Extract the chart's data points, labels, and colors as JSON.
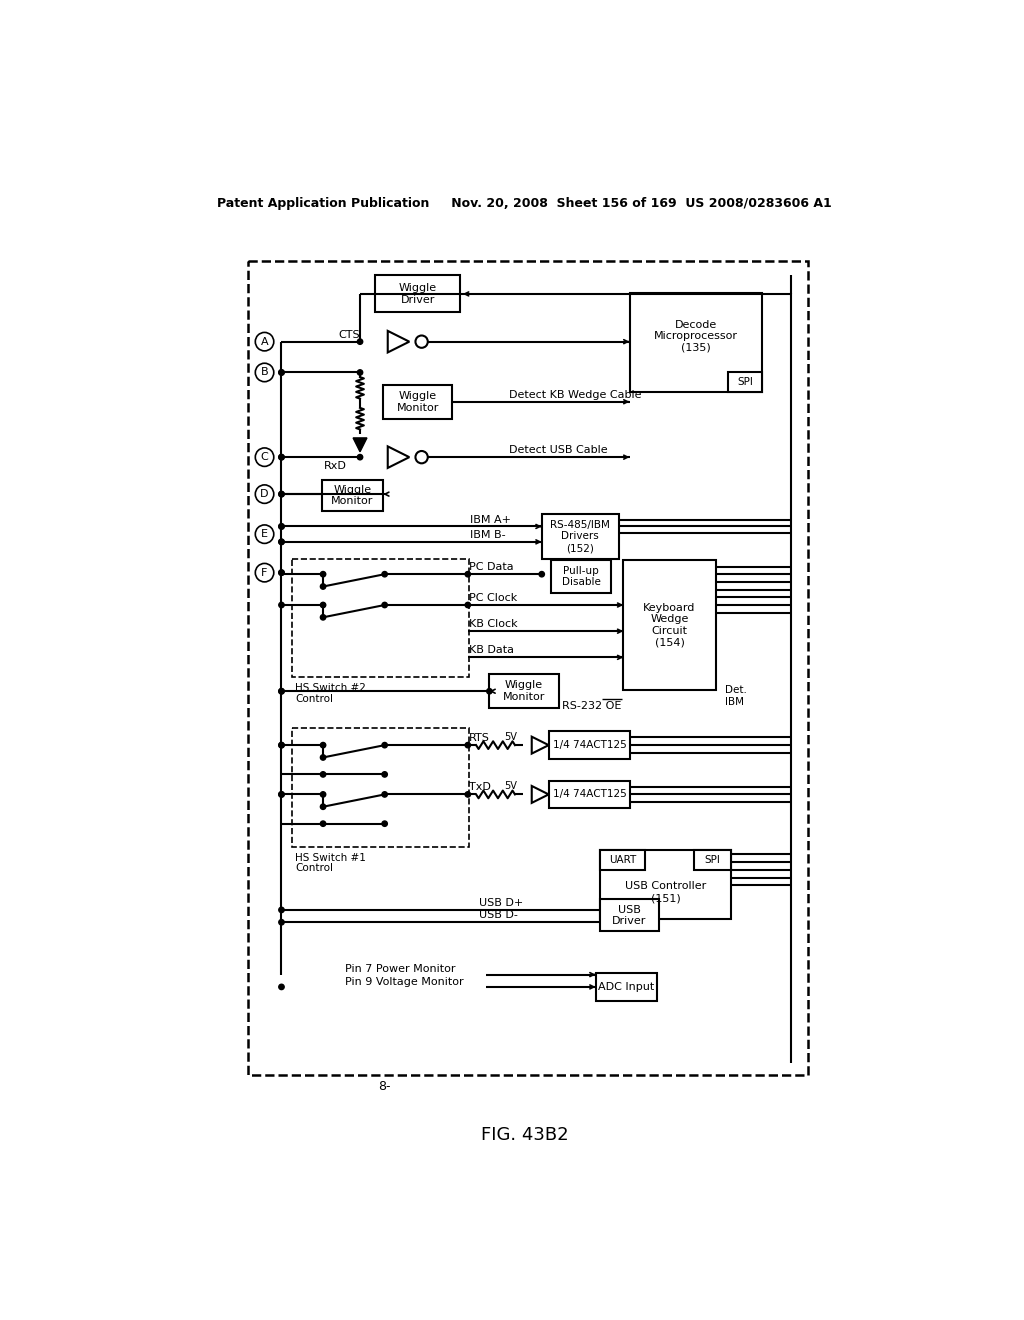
{
  "header": "Patent Application Publication     Nov. 20, 2008  Sheet 156 of 169  US 2008/0283606 A1",
  "fig_label": "FIG. 43B2",
  "fig_number": "8",
  "bg": "#ffffff"
}
